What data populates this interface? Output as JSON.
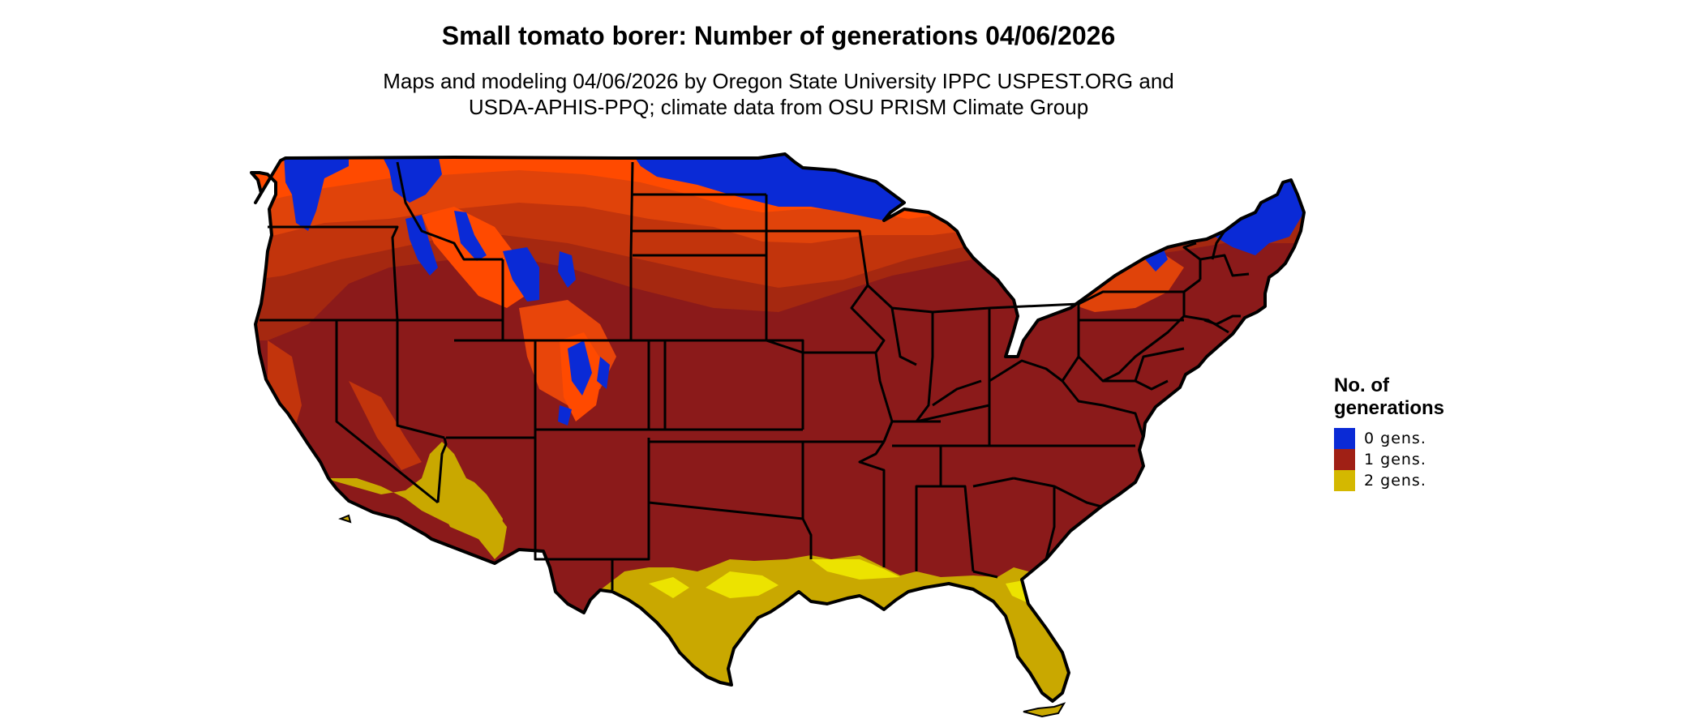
{
  "title": "Small tomato borer: Number of generations 04/06/2026",
  "subtitle_lines": [
    "Maps and modeling 04/06/2026 by Oregon State University IPPC USPEST.ORG and",
    "USDA-APHIS-PPQ; climate data from OSU PRISM Climate Group"
  ],
  "legend": {
    "title_lines": [
      "No. of",
      "generations"
    ],
    "items": [
      {
        "label": "0 gens.",
        "color": "#0a2ad6"
      },
      {
        "label": "1 gens.",
        "color": "#a02015"
      },
      {
        "label": "2 gens.",
        "color": "#d4b800"
      }
    ]
  },
  "map_colors": {
    "zero_gens": "#0a2ad6",
    "one_gen_dark": "#8b1a1a",
    "one_gen_mid": "#b0300f",
    "one_gen_orange": "#e8450a",
    "one_gen_bright": "#ff4a00",
    "two_gens": "#c9a800",
    "two_gens_bright": "#ece300",
    "border": "#000000"
  }
}
